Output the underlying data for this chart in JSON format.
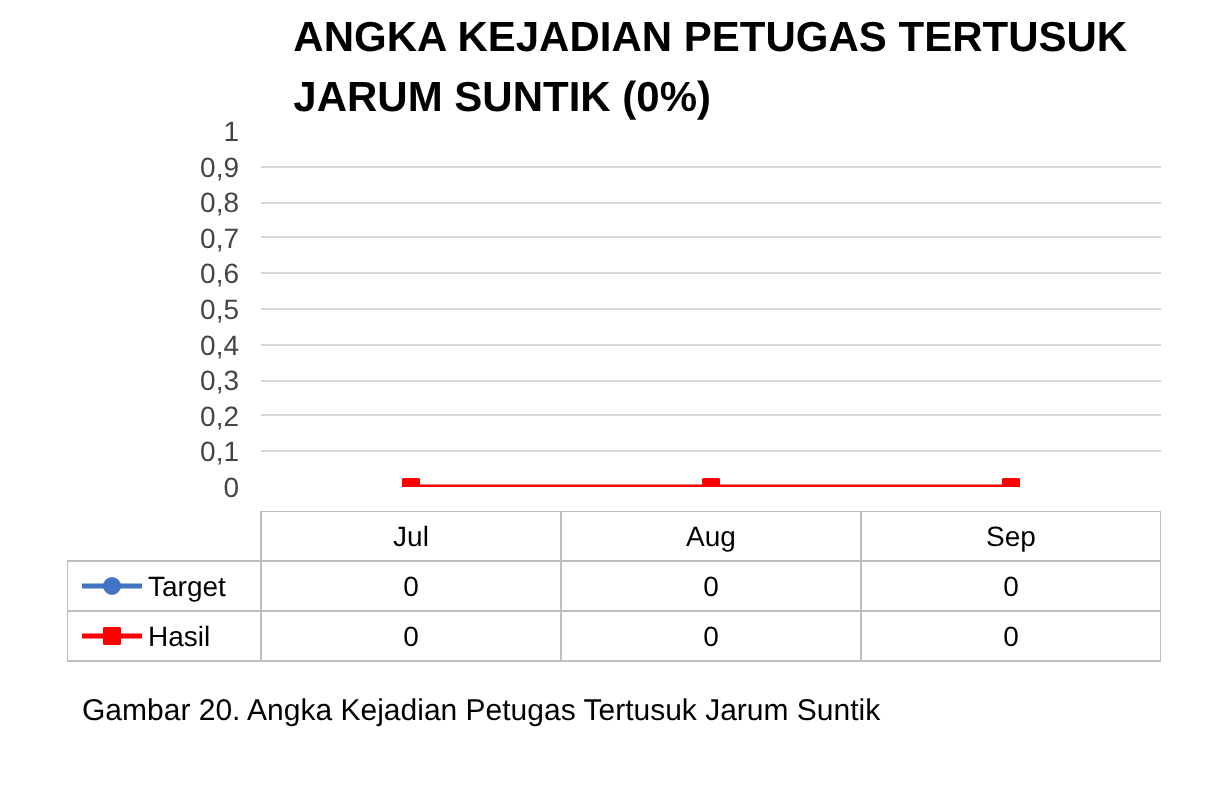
{
  "chart_data": {
    "type": "line",
    "title": "ANGKA KEJADIAN PETUGAS TERTUSUK JARUM SUNTIK (0%)",
    "categories": [
      "Jul",
      "Aug",
      "Sep"
    ],
    "series": [
      {
        "name": "Target",
        "color": "#4472c4",
        "values": [
          null,
          null,
          null
        ],
        "value_labels": [
          "0",
          "0",
          "0"
        ],
        "marker": "circle"
      },
      {
        "name": "Hasil",
        "color": "#ff0000",
        "values": [
          0,
          0,
          0
        ],
        "value_labels": [
          "0",
          "0",
          "0"
        ],
        "marker": "square"
      }
    ],
    "ylim": [
      0,
      1
    ],
    "yticks": [
      0,
      {
        "value": 0.1,
        "label": "0,1"
      },
      {
        "value": 0.2,
        "label": "0,2"
      },
      {
        "value": 0.3,
        "label": "0,3"
      },
      {
        "value": 0.4,
        "label": "0,4"
      },
      {
        "value": 0.5,
        "label": "0,5"
      },
      {
        "value": 0.6,
        "label": "0,6"
      },
      {
        "value": 0.7,
        "label": "0,7"
      },
      {
        "value": 0.8,
        "label": "0,8"
      },
      {
        "value": 0.9,
        "label": "0,9"
      },
      1
    ],
    "grid": "y",
    "legend": "bottom",
    "annotations": [
      "Gambar 20. Angka Kejadian Petugas Tertusuk Jarum Suntik"
    ]
  }
}
